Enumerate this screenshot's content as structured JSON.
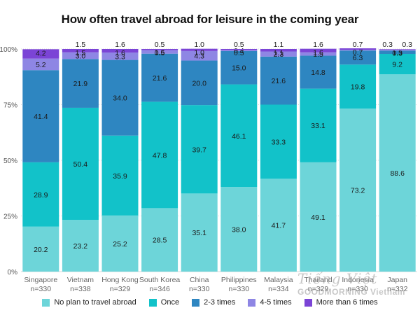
{
  "chart_data": {
    "type": "bar",
    "stacked": true,
    "title": "How often travel abroad for leisure in the coming year",
    "categories": [
      "Singapore",
      "Vietnam",
      "Hong Kong",
      "South Korea",
      "China",
      "Philippines",
      "Malaysia",
      "Thailand",
      "Indonesia",
      "Japan"
    ],
    "sample_sizes": [
      "n=330",
      "n=338",
      "n=329",
      "n=346",
      "n=330",
      "n=330",
      "n=334",
      "n=329",
      "n=330",
      "n=332"
    ],
    "yticks": [
      "0%",
      "25%",
      "50%",
      "75%",
      "100%"
    ],
    "ylim": [
      0,
      100
    ],
    "series": [
      {
        "name": "No plan to travel abroad",
        "color": "#6dd5d9",
        "values": [
          20.2,
          23.2,
          25.2,
          28.5,
          35.1,
          38.0,
          41.7,
          49.1,
          73.2,
          88.6
        ]
      },
      {
        "name": "Once",
        "color": "#12c2c9",
        "values": [
          28.9,
          50.4,
          35.9,
          47.8,
          39.7,
          46.1,
          33.3,
          33.1,
          19.8,
          9.2
        ]
      },
      {
        "name": "2-3 times",
        "color": "#2e86c1",
        "values": [
          41.4,
          21.9,
          34.0,
          21.6,
          20.0,
          15.0,
          21.6,
          14.8,
          6.3,
          1.5
        ]
      },
      {
        "name": "4-5 times",
        "color": "#8e86e4",
        "values": [
          5.2,
          3.0,
          3.3,
          1.6,
          4.3,
          0.4,
          2.3,
          1.5,
          0.3,
          0.3
        ]
      },
      {
        "name": "More than 6 times",
        "color": "#7b44d6",
        "values": [
          4.2,
          1.5,
          1.6,
          0.5,
          1.0,
          0.5,
          1.1,
          1.6,
          0.7,
          0.3
        ]
      }
    ],
    "labels": [
      [
        "20.2",
        "23.2",
        "25.2",
        "28.5",
        "35.1",
        "38.0",
        "41.7",
        "49.1",
        "73.2",
        "88.6"
      ],
      [
        "28.9",
        "50.4",
        "35.9",
        "47.8",
        "39.7",
        "46.1",
        "33.3",
        "33.1",
        "19.8",
        "9.2"
      ],
      [
        "41.4",
        "21.9",
        "34.0",
        "21.6",
        "20.0",
        "15.0",
        "21.6",
        "14.8",
        "6.3",
        "1.5"
      ],
      [
        "5.2",
        "3.0",
        "3.3",
        "1.6",
        "4.3",
        "0.4",
        "2.3",
        "1.5",
        "",
        ""
      ],
      [
        "4.2",
        "1.5",
        "1.6",
        "0.5",
        "1.0",
        "0.5",
        "1.1",
        "1.6",
        "0.7",
        "0.3"
      ]
    ],
    "top_labels": [
      "",
      "1.5",
      "1.6",
      "0.5",
      "1.0",
      "0.5",
      "1.1",
      "1.6",
      "0.7",
      "0.3"
    ],
    "extra_top_label": {
      "index": 9,
      "text": "0.3"
    }
  },
  "watermark": {
    "line1": "Tiếng Việt",
    "line2": "GOODMORNING Vietnam"
  }
}
